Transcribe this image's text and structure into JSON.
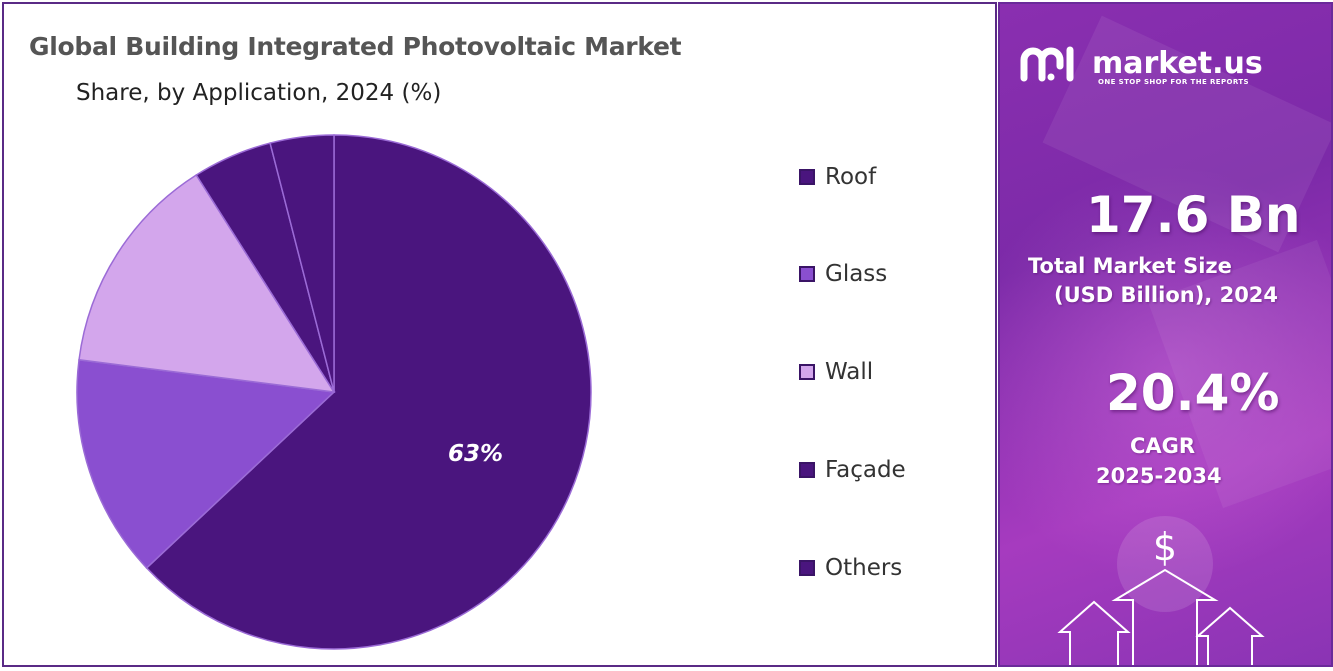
{
  "title": "Global Building Integrated Photovoltaic Market",
  "subtitle": "Share, by Application, 2024 (%)",
  "chart_data": {
    "type": "pie",
    "title": "Global Building Integrated Photovoltaic Market",
    "subtitle": "Share, by Application, 2024 (%)",
    "categories": [
      "Roof",
      "Glass",
      "Wall",
      "Façade",
      "Others"
    ],
    "values": [
      63,
      14,
      14,
      5,
      4
    ],
    "colors": [
      "#4a157e",
      "#8a4fd0",
      "#d3a6ec",
      "#4a157e",
      "#4a157e"
    ],
    "data_labels": [
      "63%",
      "",
      "",
      "",
      ""
    ],
    "legend_position": "right",
    "start_angle_deg": 0,
    "direction": "clockwise"
  },
  "legend": {
    "items": [
      {
        "label": "Roof",
        "color": "#4a157e"
      },
      {
        "label": "Glass",
        "color": "#8a4fd0"
      },
      {
        "label": "Wall",
        "color": "#d3a6ec"
      },
      {
        "label": "Façade",
        "color": "#4a157e"
      },
      {
        "label": "Others",
        "color": "#4a157e"
      }
    ]
  },
  "sidebar": {
    "brand": "market.us",
    "tagline": "ONE STOP SHOP FOR THE REPORTS",
    "market_size": "17.6 Bn",
    "market_size_caption_line1": "Total Market Size",
    "market_size_caption_line2": "(USD Billion), 2024",
    "cagr": "20.4%",
    "cagr_caption_line1": "CAGR",
    "cagr_caption_line2": "2025-2034",
    "currency_symbol": "$",
    "icons": [
      "market-us-logo-icon",
      "dollar-icon",
      "up-arrow-icon"
    ]
  }
}
